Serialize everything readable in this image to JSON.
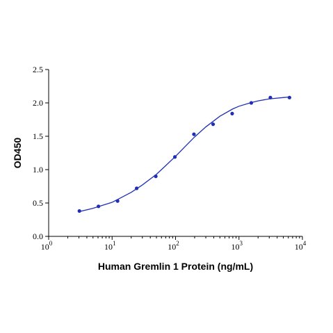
{
  "chart_data": {
    "type": "scatter",
    "xlabel": "Human Gremlin 1 Protein (ng/mL)",
    "ylabel": "OD450",
    "x_scale": "log10",
    "xlim": [
      1,
      10000
    ],
    "ylim": [
      0,
      2.5
    ],
    "x_ticks": [
      1,
      10,
      100,
      1000,
      10000
    ],
    "x_tick_bases": [
      "10",
      "10",
      "10",
      "10",
      "10"
    ],
    "x_tick_exponents": [
      "0",
      "1",
      "2",
      "3",
      "4"
    ],
    "y_ticks": [
      0,
      0.5,
      1.0,
      1.5,
      2.0,
      2.5
    ],
    "y_tick_labels": [
      "0.0",
      "0.5",
      "1.0",
      "1.5",
      "2.0",
      "2.5"
    ],
    "grid": false,
    "series_color": "#1f2fb5",
    "points": [
      {
        "x": 3.05,
        "y": 0.38
      },
      {
        "x": 6.1,
        "y": 0.45
      },
      {
        "x": 12.2,
        "y": 0.53
      },
      {
        "x": 24.4,
        "y": 0.72
      },
      {
        "x": 48.8,
        "y": 0.9
      },
      {
        "x": 97.7,
        "y": 1.19
      },
      {
        "x": 195,
        "y": 1.53
      },
      {
        "x": 391,
        "y": 1.68
      },
      {
        "x": 781,
        "y": 1.84
      },
      {
        "x": 1563,
        "y": 2.0
      },
      {
        "x": 3125,
        "y": 2.08
      },
      {
        "x": 6250,
        "y": 2.08
      }
    ],
    "fit_curve": [
      {
        "x": 3,
        "y": 0.37
      },
      {
        "x": 5,
        "y": 0.42
      },
      {
        "x": 10,
        "y": 0.51
      },
      {
        "x": 20,
        "y": 0.66
      },
      {
        "x": 30,
        "y": 0.77
      },
      {
        "x": 50,
        "y": 0.93
      },
      {
        "x": 70,
        "y": 1.06
      },
      {
        "x": 100,
        "y": 1.2
      },
      {
        "x": 150,
        "y": 1.37
      },
      {
        "x": 200,
        "y": 1.49
      },
      {
        "x": 300,
        "y": 1.64
      },
      {
        "x": 500,
        "y": 1.8
      },
      {
        "x": 800,
        "y": 1.91
      },
      {
        "x": 1000,
        "y": 1.95
      },
      {
        "x": 1500,
        "y": 2.0
      },
      {
        "x": 2000,
        "y": 2.03
      },
      {
        "x": 3000,
        "y": 2.06
      },
      {
        "x": 5000,
        "y": 2.08
      },
      {
        "x": 6500,
        "y": 2.09
      }
    ]
  }
}
